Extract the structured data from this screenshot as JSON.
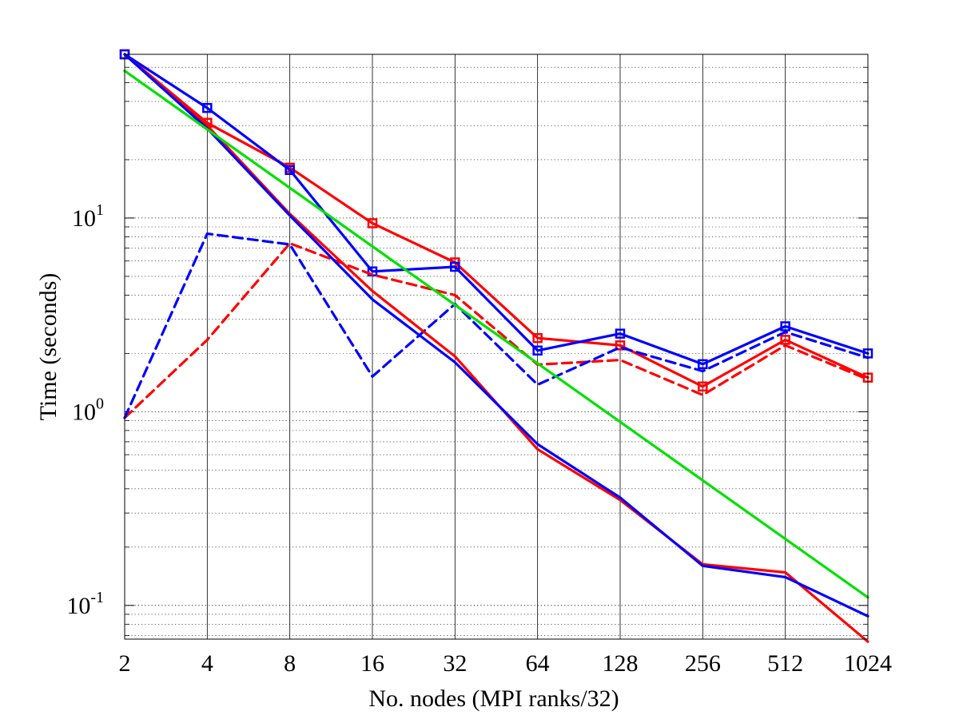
{
  "chart_data": {
    "type": "line",
    "title": "",
    "xlabel": "No. nodes (MPI ranks/32)",
    "ylabel": "Time (seconds)",
    "x_scale": "log2",
    "y_scale": "log10",
    "xlim": [
      2,
      1024
    ],
    "ylim": [
      0.067,
      70
    ],
    "x_ticks": [
      2,
      4,
      8,
      16,
      32,
      64,
      128,
      256,
      512,
      1024
    ],
    "x_tick_labels": [
      "2",
      "4",
      "8",
      "16",
      "32",
      "64",
      "128",
      "256",
      "512",
      "1024"
    ],
    "y_ticks": [
      {
        "value": 1,
        "base": "10",
        "exp": "0"
      },
      {
        "value": 10,
        "base": "10",
        "exp": "1"
      },
      {
        "value": 0.1,
        "base": "10",
        "exp": "-1"
      }
    ],
    "grid": {
      "x_major": true,
      "y_major": true,
      "y_minor": true
    },
    "legend": "none",
    "series": [
      {
        "color": "#ff0000",
        "style": "solid",
        "marker": "square",
        "x": [
          2,
          4,
          8,
          16,
          32,
          64,
          128,
          256,
          512,
          1024
        ],
        "y": [
          70,
          31,
          18.2,
          9.4,
          5.9,
          2.4,
          2.2,
          1.35,
          2.35,
          1.5
        ]
      },
      {
        "color": "#0000ff",
        "style": "solid",
        "marker": "square",
        "x": [
          2,
          4,
          8,
          16,
          32,
          64,
          128,
          256,
          512,
          1024
        ],
        "y": [
          70,
          37,
          17.7,
          5.3,
          5.6,
          2.07,
          2.53,
          1.76,
          2.76,
          2.0
        ]
      },
      {
        "color": "#ff0000",
        "style": "dashed",
        "marker": "none",
        "x": [
          2,
          4,
          8,
          16,
          32,
          64,
          128,
          256,
          512,
          1024
        ],
        "y": [
          0.93,
          2.35,
          7.4,
          5.1,
          4.0,
          1.75,
          1.85,
          1.22,
          2.2,
          1.47
        ]
      },
      {
        "color": "#0000ff",
        "style": "dashed",
        "marker": "none",
        "x": [
          2,
          4,
          8,
          16,
          32,
          64,
          128,
          256,
          512,
          1024
        ],
        "y": [
          0.93,
          8.3,
          7.3,
          1.52,
          3.6,
          1.38,
          2.15,
          1.62,
          2.58,
          1.9
        ]
      },
      {
        "color": "#ff0000",
        "style": "solid",
        "marker": "none",
        "x": [
          2,
          4,
          8,
          16,
          32,
          64,
          128,
          256,
          512,
          1024
        ],
        "y": [
          70,
          30,
          10.5,
          4.2,
          1.93,
          0.64,
          0.35,
          0.163,
          0.148,
          0.065
        ]
      },
      {
        "color": "#0000ff",
        "style": "solid",
        "marker": "none",
        "x": [
          2,
          4,
          8,
          16,
          32,
          64,
          128,
          256,
          512,
          1024
        ],
        "y": [
          70,
          29,
          10.3,
          3.8,
          1.8,
          0.68,
          0.36,
          0.16,
          0.14,
          0.088
        ]
      },
      {
        "color": "#00e000",
        "style": "solid",
        "marker": "none",
        "x": [
          2,
          1024
        ],
        "y": [
          57.5,
          0.11
        ]
      }
    ]
  }
}
